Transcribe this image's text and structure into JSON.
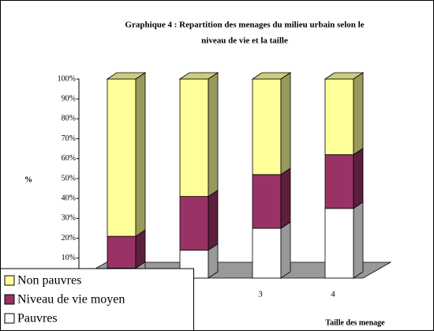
{
  "chart_data": {
    "type": "bar",
    "stacked": true,
    "title": "Graphique 4 : Repartition des menages du milieu urbain selon le niveau de vie et la taille",
    "title_lines": [
      "Graphique 4 : Repartition des menages du milieu urbain selon le",
      "niveau de vie et la taille"
    ],
    "y_label": "%",
    "x_label": "Taille des menage",
    "categories": [
      null,
      null,
      "3",
      "4"
    ],
    "series": [
      {
        "name": "Pauvres",
        "color": "#ffffff",
        "values": [
          5,
          14,
          25,
          35
        ]
      },
      {
        "name": "Niveau de vie moyen",
        "color": "#993366",
        "values": [
          16,
          27,
          27,
          27
        ]
      },
      {
        "name": "Non pauvres",
        "color": "#ffff99",
        "values": [
          79,
          59,
          48,
          38
        ]
      }
    ],
    "ylim": [
      0,
      100
    ],
    "yticks": [
      {
        "value": 10,
        "label": "10%"
      },
      {
        "value": 20,
        "label": "20%"
      },
      {
        "value": 30,
        "label": "30%"
      },
      {
        "value": 40,
        "label": "40%"
      },
      {
        "value": 50,
        "label": "50%"
      },
      {
        "value": 60,
        "label": "60%"
      },
      {
        "value": 70,
        "label": "70%"
      },
      {
        "value": 80,
        "label": "80%"
      },
      {
        "value": 90,
        "label": "90%"
      },
      {
        "value": 100,
        "label": "100%"
      }
    ],
    "legend": "bottom-left"
  }
}
